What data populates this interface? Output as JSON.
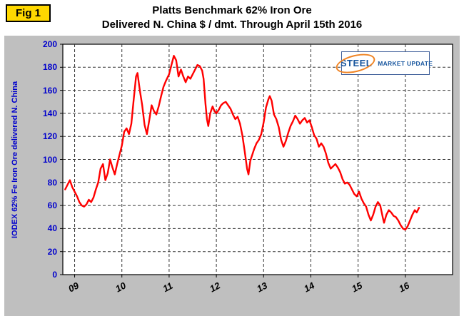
{
  "fig_label": "Fig 1",
  "logo": {
    "steel": "STEEL",
    "rest": "MARKET UPDATE"
  },
  "chart_data": {
    "type": "line",
    "title": "Platts Benchmark 62% Iron Ore",
    "subtitle": "Delivered N. China $ / dmt. Through April 15th 2016",
    "ylabel": "IODEX 62% Fe Iron Ore delivered N. China",
    "xlabel": "",
    "ylim": [
      0,
      200
    ],
    "xlim": [
      2008.75,
      2017.0
    ],
    "yticks": [
      0,
      20,
      40,
      60,
      80,
      100,
      120,
      140,
      160,
      180,
      200
    ],
    "xticks": [
      2009,
      2010,
      2011,
      2012,
      2013,
      2014,
      2015,
      2016
    ],
    "xtick_labels": [
      "09",
      "10",
      "11",
      "12",
      "13",
      "14",
      "15",
      "16"
    ],
    "grid": true,
    "legend_position": "none",
    "colors": {
      "line": "#FF0000",
      "panel_bg": "#BFBFBF",
      "plot_bg": "#FFFFFF",
      "axis_text": "#0000CC",
      "grid": "#333333"
    },
    "series": [
      {
        "name": "IODEX 62% Fe Iron Ore delivered N. China ($/dmt)",
        "points": [
          [
            2008.8,
            74
          ],
          [
            2008.85,
            78
          ],
          [
            2008.9,
            82
          ],
          [
            2008.95,
            76
          ],
          [
            2009.0,
            72
          ],
          [
            2009.05,
            68
          ],
          [
            2009.1,
            63
          ],
          [
            2009.15,
            60
          ],
          [
            2009.2,
            59
          ],
          [
            2009.25,
            61
          ],
          [
            2009.3,
            65
          ],
          [
            2009.35,
            63
          ],
          [
            2009.4,
            67
          ],
          [
            2009.45,
            74
          ],
          [
            2009.5,
            80
          ],
          [
            2009.55,
            92
          ],
          [
            2009.6,
            96
          ],
          [
            2009.65,
            82
          ],
          [
            2009.7,
            88
          ],
          [
            2009.75,
            100
          ],
          [
            2009.8,
            93
          ],
          [
            2009.85,
            87
          ],
          [
            2009.9,
            96
          ],
          [
            2009.95,
            104
          ],
          [
            2010.0,
            112
          ],
          [
            2010.05,
            124
          ],
          [
            2010.1,
            127
          ],
          [
            2010.15,
            122
          ],
          [
            2010.2,
            131
          ],
          [
            2010.25,
            152
          ],
          [
            2010.3,
            172
          ],
          [
            2010.33,
            175
          ],
          [
            2010.38,
            160
          ],
          [
            2010.43,
            147
          ],
          [
            2010.48,
            130
          ],
          [
            2010.53,
            122
          ],
          [
            2010.58,
            134
          ],
          [
            2010.63,
            147
          ],
          [
            2010.68,
            142
          ],
          [
            2010.73,
            139
          ],
          [
            2010.78,
            146
          ],
          [
            2010.83,
            155
          ],
          [
            2010.88,
            163
          ],
          [
            2010.93,
            168
          ],
          [
            2011.0,
            174
          ],
          [
            2011.05,
            182
          ],
          [
            2011.1,
            190
          ],
          [
            2011.15,
            186
          ],
          [
            2011.2,
            172
          ],
          [
            2011.25,
            178
          ],
          [
            2011.3,
            172
          ],
          [
            2011.35,
            167
          ],
          [
            2011.4,
            172
          ],
          [
            2011.45,
            170
          ],
          [
            2011.5,
            174
          ],
          [
            2011.55,
            178
          ],
          [
            2011.6,
            182
          ],
          [
            2011.65,
            181
          ],
          [
            2011.7,
            177
          ],
          [
            2011.73,
            170
          ],
          [
            2011.77,
            148
          ],
          [
            2011.8,
            135
          ],
          [
            2011.83,
            129
          ],
          [
            2011.87,
            140
          ],
          [
            2011.92,
            146
          ],
          [
            2011.96,
            142
          ],
          [
            2012.0,
            140
          ],
          [
            2012.05,
            143
          ],
          [
            2012.1,
            147
          ],
          [
            2012.15,
            149
          ],
          [
            2012.2,
            150
          ],
          [
            2012.25,
            147
          ],
          [
            2012.3,
            144
          ],
          [
            2012.35,
            139
          ],
          [
            2012.4,
            135
          ],
          [
            2012.45,
            137
          ],
          [
            2012.5,
            131
          ],
          [
            2012.55,
            121
          ],
          [
            2012.6,
            107
          ],
          [
            2012.65,
            92
          ],
          [
            2012.68,
            87
          ],
          [
            2012.72,
            99
          ],
          [
            2012.76,
            104
          ],
          [
            2012.8,
            109
          ],
          [
            2012.85,
            114
          ],
          [
            2012.9,
            117
          ],
          [
            2012.95,
            122
          ],
          [
            2013.0,
            132
          ],
          [
            2013.05,
            145
          ],
          [
            2013.1,
            152
          ],
          [
            2013.13,
            155
          ],
          [
            2013.17,
            151
          ],
          [
            2013.22,
            139
          ],
          [
            2013.27,
            135
          ],
          [
            2013.32,
            128
          ],
          [
            2013.37,
            117
          ],
          [
            2013.42,
            111
          ],
          [
            2013.47,
            116
          ],
          [
            2013.52,
            123
          ],
          [
            2013.57,
            129
          ],
          [
            2013.62,
            133
          ],
          [
            2013.67,
            138
          ],
          [
            2013.72,
            135
          ],
          [
            2013.77,
            131
          ],
          [
            2013.82,
            134
          ],
          [
            2013.87,
            136
          ],
          [
            2013.92,
            132
          ],
          [
            2013.97,
            134
          ],
          [
            2014.02,
            128
          ],
          [
            2014.07,
            121
          ],
          [
            2014.12,
            118
          ],
          [
            2014.17,
            111
          ],
          [
            2014.22,
            114
          ],
          [
            2014.27,
            111
          ],
          [
            2014.32,
            105
          ],
          [
            2014.37,
            97
          ],
          [
            2014.42,
            92
          ],
          [
            2014.47,
            94
          ],
          [
            2014.52,
            96
          ],
          [
            2014.57,
            93
          ],
          [
            2014.62,
            89
          ],
          [
            2014.67,
            83
          ],
          [
            2014.72,
            79
          ],
          [
            2014.77,
            80
          ],
          [
            2014.82,
            78
          ],
          [
            2014.87,
            74
          ],
          [
            2014.92,
            70
          ],
          [
            2014.97,
            68
          ],
          [
            2015.02,
            72
          ],
          [
            2015.07,
            66
          ],
          [
            2015.12,
            62
          ],
          [
            2015.17,
            59
          ],
          [
            2015.22,
            52
          ],
          [
            2015.27,
            47
          ],
          [
            2015.32,
            52
          ],
          [
            2015.37,
            59
          ],
          [
            2015.42,
            63
          ],
          [
            2015.47,
            60
          ],
          [
            2015.52,
            50
          ],
          [
            2015.55,
            45
          ],
          [
            2015.6,
            52
          ],
          [
            2015.65,
            56
          ],
          [
            2015.7,
            54
          ],
          [
            2015.75,
            51
          ],
          [
            2015.8,
            50
          ],
          [
            2015.85,
            47
          ],
          [
            2015.9,
            43
          ],
          [
            2015.95,
            40
          ],
          [
            2016.0,
            39
          ],
          [
            2016.05,
            42
          ],
          [
            2016.1,
            47
          ],
          [
            2016.15,
            52
          ],
          [
            2016.2,
            56
          ],
          [
            2016.24,
            54
          ],
          [
            2016.29,
            58
          ]
        ]
      }
    ]
  }
}
